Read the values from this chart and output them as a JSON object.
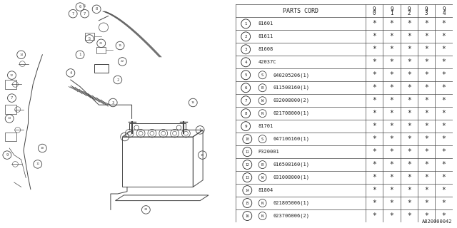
{
  "bg_color": "#ffffff",
  "diagram_ref": "A820000042",
  "parts_data": [
    {
      "num": "1",
      "code": "81601",
      "prefix": ""
    },
    {
      "num": "2",
      "code": "81611",
      "prefix": ""
    },
    {
      "num": "3",
      "code": "81608",
      "prefix": ""
    },
    {
      "num": "4",
      "code": "42037C",
      "prefix": ""
    },
    {
      "num": "5",
      "code": "040205206(1)",
      "prefix": "S"
    },
    {
      "num": "6",
      "code": "011508160(1)",
      "prefix": "B"
    },
    {
      "num": "7",
      "code": "032008000(2)",
      "prefix": "W"
    },
    {
      "num": "8",
      "code": "021708000(1)",
      "prefix": "N"
    },
    {
      "num": "9",
      "code": "81701",
      "prefix": ""
    },
    {
      "num": "10",
      "code": "047106160(1)",
      "prefix": "S"
    },
    {
      "num": "11",
      "code": "P320001",
      "prefix": ""
    },
    {
      "num": "12",
      "code": "016508160(1)",
      "prefix": "B"
    },
    {
      "num": "13",
      "code": "031008000(1)",
      "prefix": "W"
    },
    {
      "num": "14",
      "code": "81804",
      "prefix": ""
    },
    {
      "num": "15",
      "code": "021805006(1)",
      "prefix": "N"
    },
    {
      "num": "16",
      "code": "023706006(2)",
      "prefix": "N"
    }
  ],
  "year_cols": [
    "9\n0",
    "9\n1",
    "9\n2",
    "9\n3",
    "9\n4"
  ],
  "line_color": "#444444",
  "text_color": "#222222"
}
